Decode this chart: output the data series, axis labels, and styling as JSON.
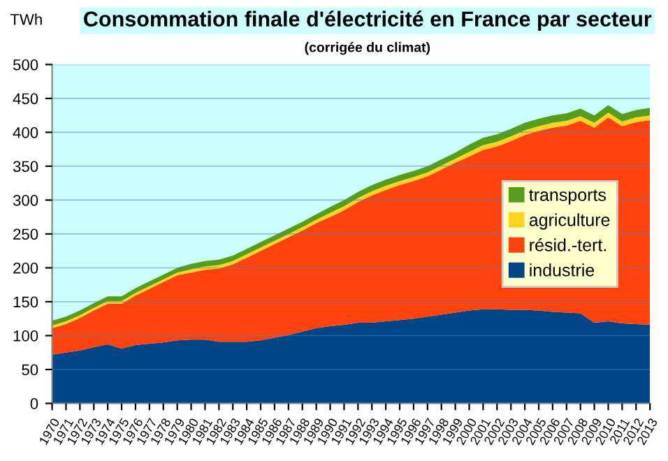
{
  "chart_data": {
    "type": "area",
    "stacked": true,
    "title": "Consommation finale d'électricité en France par secteur",
    "subtitle": "(corrigée du climat)",
    "ylabel": "TWh",
    "categories": [
      "1970",
      "1971",
      "1972",
      "1973",
      "1974",
      "1975",
      "1976",
      "1977",
      "1978",
      "1979",
      "1980",
      "1981",
      "1982",
      "1983",
      "1984",
      "1985",
      "1986",
      "1987",
      "1988",
      "1989",
      "1990",
      "1991",
      "1992",
      "1993",
      "1994",
      "1995",
      "1996",
      "1997",
      "1998",
      "1999",
      "2000",
      "2001",
      "2002",
      "2003",
      "2004",
      "2005",
      "2006",
      "2007",
      "2008",
      "2009",
      "2010",
      "2011",
      "2012",
      "2013"
    ],
    "series": [
      {
        "name": "industrie",
        "color": "#004586",
        "values": [
          72,
          75,
          78,
          83,
          87,
          81,
          86,
          88,
          90,
          93,
          94,
          94,
          91,
          91,
          91,
          93,
          97,
          101,
          106,
          111,
          114,
          116,
          119,
          119,
          121,
          123,
          125,
          128,
          131,
          134,
          137,
          139,
          139,
          138,
          138,
          137,
          135,
          134,
          133,
          119,
          121,
          118,
          117,
          116
        ]
      },
      {
        "name": "résid.-tert.",
        "color": "#ff420e",
        "values": [
          39,
          42,
          48,
          54,
          60,
          66,
          73,
          81,
          89,
          96,
          99,
          103,
          108,
          114,
          124,
          132,
          138,
          144,
          149,
          155,
          161,
          169,
          178,
          188,
          194,
          199,
          203,
          207,
          214,
          221,
          227,
          235,
          240,
          249,
          258,
          265,
          272,
          276,
          284,
          288,
          301,
          291,
          298,
          302
        ]
      },
      {
        "name": "agriculture",
        "color": "#ffd320",
        "values": [
          4,
          4,
          4,
          4,
          4,
          4,
          4,
          4,
          4,
          4,
          5,
          5,
          5,
          5,
          5,
          5,
          5,
          5,
          5,
          5,
          6,
          6,
          6,
          6,
          6,
          6,
          6,
          6,
          6,
          6,
          7,
          7,
          7,
          7,
          7,
          7,
          7,
          7,
          7,
          7,
          7,
          7,
          7,
          7
        ]
      },
      {
        "name": "transports",
        "color": "#579d1c",
        "values": [
          7,
          7,
          7,
          7,
          7,
          7,
          7,
          7,
          7,
          7,
          8,
          8,
          8,
          8,
          8,
          8,
          8,
          8,
          8,
          8,
          9,
          9,
          9,
          9,
          9,
          9,
          9,
          9,
          9,
          9,
          11,
          11,
          11,
          11,
          11,
          11,
          11,
          11,
          11,
          11,
          11,
          11,
          11,
          11
        ]
      }
    ],
    "ylim": [
      0,
      500
    ],
    "yticks": [
      0,
      50,
      100,
      150,
      200,
      250,
      300,
      350,
      400,
      450,
      500
    ],
    "grid": "y",
    "legend": "right"
  }
}
